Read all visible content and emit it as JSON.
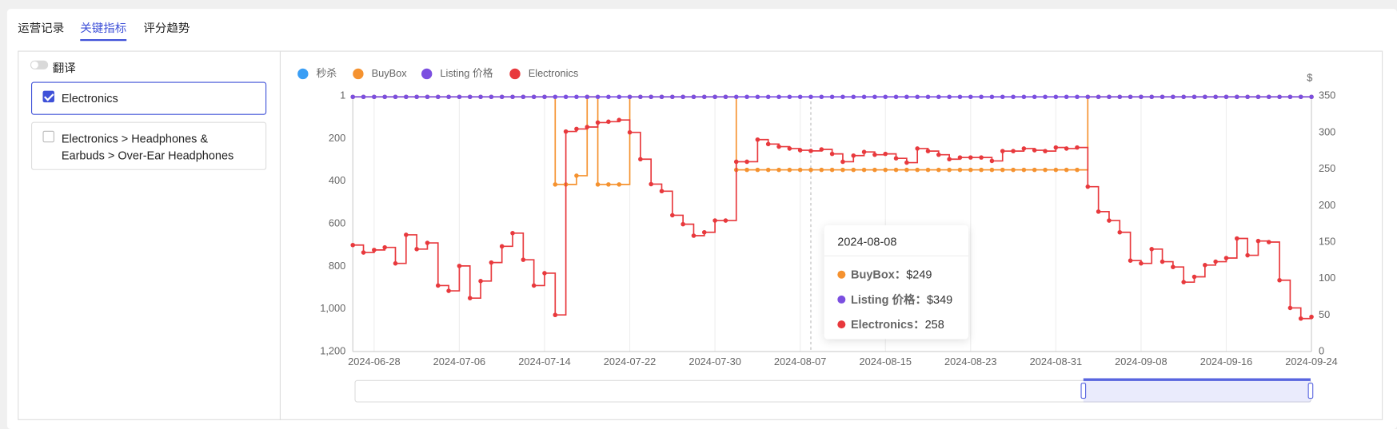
{
  "tabs": [
    {
      "label": "运营记录",
      "active": false
    },
    {
      "label": "关键指标",
      "active": true
    },
    {
      "label": "评分趋势",
      "active": false
    }
  ],
  "translate_toggle": {
    "label": "翻译",
    "on": false
  },
  "category_filters": [
    {
      "label": "Electronics",
      "checked": true
    },
    {
      "label": "Electronics > Headphones & Earbuds > Over-Ear Headphones",
      "checked": false
    }
  ],
  "chart_data": {
    "type": "step-line",
    "x": [
      "2024-06-26",
      "2024-06-27",
      "2024-06-28",
      "2024-06-29",
      "2024-06-30",
      "2024-07-01",
      "2024-07-02",
      "2024-07-03",
      "2024-07-04",
      "2024-07-05",
      "2024-07-06",
      "2024-07-07",
      "2024-07-08",
      "2024-07-09",
      "2024-07-10",
      "2024-07-11",
      "2024-07-12",
      "2024-07-13",
      "2024-07-14",
      "2024-07-15",
      "2024-07-16",
      "2024-07-17",
      "2024-07-18",
      "2024-07-19",
      "2024-07-20",
      "2024-07-21",
      "2024-07-22",
      "2024-07-23",
      "2024-07-24",
      "2024-07-25",
      "2024-07-26",
      "2024-07-27",
      "2024-07-28",
      "2024-07-29",
      "2024-07-30",
      "2024-07-31",
      "2024-08-01",
      "2024-08-02",
      "2024-08-03",
      "2024-08-04",
      "2024-08-05",
      "2024-08-06",
      "2024-08-07",
      "2024-08-08",
      "2024-08-09",
      "2024-08-10",
      "2024-08-11",
      "2024-08-12",
      "2024-08-13",
      "2024-08-14",
      "2024-08-15",
      "2024-08-16",
      "2024-08-17",
      "2024-08-18",
      "2024-08-19",
      "2024-08-20",
      "2024-08-21",
      "2024-08-22",
      "2024-08-23",
      "2024-08-24",
      "2024-08-25",
      "2024-08-26",
      "2024-08-27",
      "2024-08-28",
      "2024-08-29",
      "2024-08-30",
      "2024-08-31",
      "2024-09-01",
      "2024-09-02",
      "2024-09-03",
      "2024-09-04",
      "2024-09-05",
      "2024-09-06",
      "2024-09-07",
      "2024-09-08",
      "2024-09-09",
      "2024-09-10",
      "2024-09-11",
      "2024-09-12",
      "2024-09-13",
      "2024-09-14",
      "2024-09-15",
      "2024-09-16",
      "2024-09-17",
      "2024-09-18",
      "2024-09-19",
      "2024-09-20",
      "2024-09-21",
      "2024-09-22",
      "2024-09-23",
      "2024-09-24"
    ],
    "xlim": [
      "2024-06-26",
      "2024-09-24"
    ],
    "xticks": [
      "2024-06-28",
      "2024-07-06",
      "2024-07-14",
      "2024-07-22",
      "2024-07-30",
      "2024-08-07",
      "2024-08-15",
      "2024-08-23",
      "2024-08-31",
      "2024-09-08",
      "2024-09-16",
      "2024-09-24"
    ],
    "ylim": [
      1,
      1200
    ],
    "y_inverted": true,
    "yticks": [
      1,
      200,
      400,
      600,
      800,
      {
        "value": 1000,
        "label": "1,000"
      },
      {
        "value": 1200,
        "label": "1,200"
      }
    ],
    "y2lim": [
      0,
      350
    ],
    "y2ticks": [
      0,
      50,
      100,
      150,
      200,
      250,
      300,
      350
    ],
    "y2_unit": "$",
    "grid": true,
    "series": [
      {
        "name": "秒杀",
        "color": "#3a9ef5",
        "axis": "y2",
        "values": [
          null,
          null,
          null,
          null,
          null,
          null,
          null,
          null,
          null,
          null,
          null,
          null,
          null,
          null,
          null,
          null,
          null,
          null,
          null,
          null,
          null,
          null,
          null,
          null,
          null,
          null,
          null,
          null,
          null,
          null,
          null,
          null,
          null,
          null,
          null,
          null,
          null,
          null,
          null,
          null,
          null,
          null,
          null,
          null,
          null,
          null,
          null,
          null,
          null,
          null,
          null,
          null,
          null,
          null,
          null,
          null,
          null,
          null,
          null,
          null,
          null,
          null,
          null,
          null,
          null,
          null,
          null,
          null,
          null,
          null,
          null,
          null,
          null,
          null,
          null,
          null,
          null,
          null,
          null,
          null,
          null,
          null,
          null,
          null,
          null,
          null,
          null,
          null,
          null,
          null,
          null
        ]
      },
      {
        "name": "BuyBox",
        "color": "#f5922f",
        "axis": "y2",
        "values": [
          349,
          349,
          349,
          349,
          349,
          349,
          349,
          349,
          349,
          349,
          349,
          349,
          349,
          349,
          349,
          349,
          349,
          349,
          349,
          229,
          229,
          241,
          349,
          229,
          229,
          229,
          349,
          349,
          349,
          349,
          349,
          349,
          349,
          349,
          349,
          349,
          249,
          249,
          249,
          249,
          249,
          249,
          249,
          249,
          249,
          249,
          249,
          249,
          249,
          249,
          249,
          249,
          249,
          249,
          249,
          249,
          249,
          249,
          249,
          249,
          249,
          249,
          249,
          249,
          249,
          249,
          249,
          249,
          249,
          349,
          349,
          349,
          349,
          349,
          349,
          349,
          349,
          349,
          349,
          349,
          349,
          349,
          349,
          349,
          349,
          349,
          349,
          349,
          349,
          349,
          349
        ]
      },
      {
        "name": "Listing 价格",
        "color": "#7b4fe0",
        "axis": "y2",
        "values": [
          349,
          349,
          349,
          349,
          349,
          349,
          349,
          349,
          349,
          349,
          349,
          349,
          349,
          349,
          349,
          349,
          349,
          349,
          349,
          349,
          349,
          349,
          349,
          349,
          349,
          349,
          349,
          349,
          349,
          349,
          349,
          349,
          349,
          349,
          349,
          349,
          349,
          349,
          349,
          349,
          349,
          349,
          349,
          349,
          349,
          349,
          349,
          349,
          349,
          349,
          349,
          349,
          349,
          349,
          349,
          349,
          349,
          349,
          349,
          349,
          349,
          349,
          349,
          349,
          349,
          349,
          349,
          349,
          349,
          349,
          349,
          349,
          349,
          349,
          349,
          349,
          349,
          349,
          349,
          349,
          349,
          349,
          349,
          349,
          349,
          349,
          349,
          349,
          349,
          349,
          349
        ]
      },
      {
        "name": "Electronics",
        "color": "#e8393d",
        "axis": "y",
        "values": [
          700,
          735,
          723,
          711,
          786,
          652,
          719,
          690,
          890,
          915,
          798,
          949,
          869,
          782,
          706,
          644,
          769,
          890,
          832,
          1028,
          167,
          155,
          146,
          125,
          121,
          113,
          171,
          297,
          414,
          447,
          560,
          602,
          656,
          640,
          585,
          585,
          309,
          309,
          205,
          226,
          238,
          247,
          255,
          258,
          251,
          272,
          309,
          280,
          263,
          276,
          272,
          293,
          313,
          247,
          259,
          276,
          297,
          289,
          289,
          289,
          305,
          259,
          259,
          247,
          255,
          259,
          242,
          247,
          242,
          426,
          543,
          585,
          640,
          773,
          786,
          719,
          778,
          803,
          874,
          849,
          794,
          778,
          761,
          669,
          748,
          681,
          686,
          865,
          995,
          1045,
          1037
        ]
      }
    ],
    "tooltip": {
      "title": "2024-08-08",
      "items": [
        {
          "label": "BuyBox：",
          "value": "$249",
          "color": "#f5922f"
        },
        {
          "label": "Listing 价格：",
          "value": "$349",
          "color": "#7b4fe0"
        },
        {
          "label": "Electronics：",
          "value": "258",
          "color": "#e8393d"
        }
      ]
    }
  }
}
